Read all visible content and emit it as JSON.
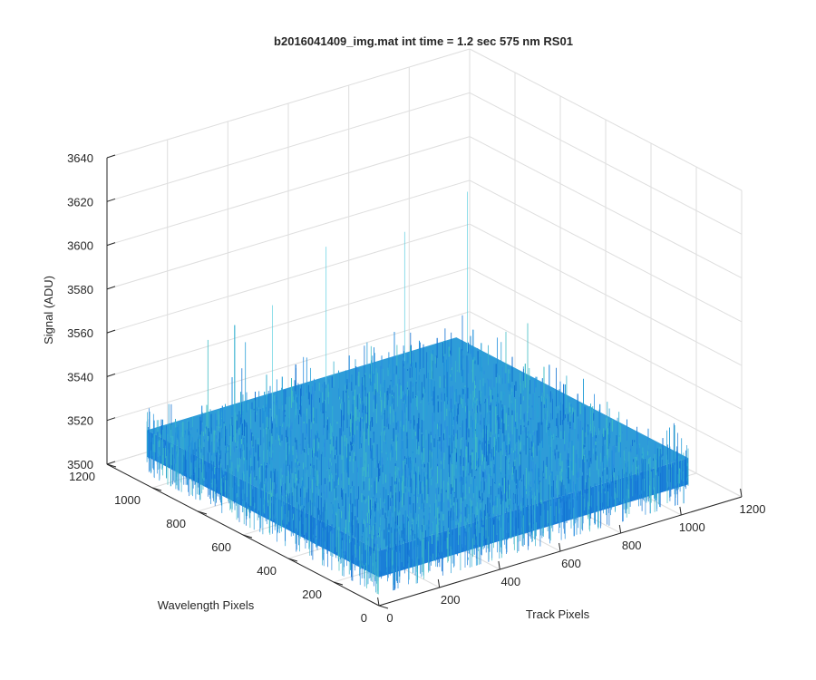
{
  "chart_data": {
    "type": "surface3d",
    "title": "b2016041409_img.mat int time = 1.2 sec  575 nm RS01",
    "xlabel": "Track Pixels",
    "ylabel": "Wavelength Pixels",
    "zlabel": "Signal (ADU)",
    "xlim": [
      0,
      1200
    ],
    "ylim": [
      0,
      1200
    ],
    "zlim": [
      3500,
      3640
    ],
    "x_ticks": [
      0,
      200,
      400,
      600,
      800,
      1000,
      1200
    ],
    "y_ticks": [
      0,
      200,
      400,
      600,
      800,
      1000,
      1200
    ],
    "z_ticks": [
      3500,
      3520,
      3540,
      3560,
      3580,
      3600,
      3620,
      3640
    ],
    "x_extent": [
      0,
      1024
    ],
    "y_extent": [
      0,
      1024
    ],
    "surface_mean": 3525,
    "surface_noise_range": [
      3505,
      3595
    ],
    "colormap": "parula",
    "surface_color": "#1f8fdc",
    "grid": true
  }
}
